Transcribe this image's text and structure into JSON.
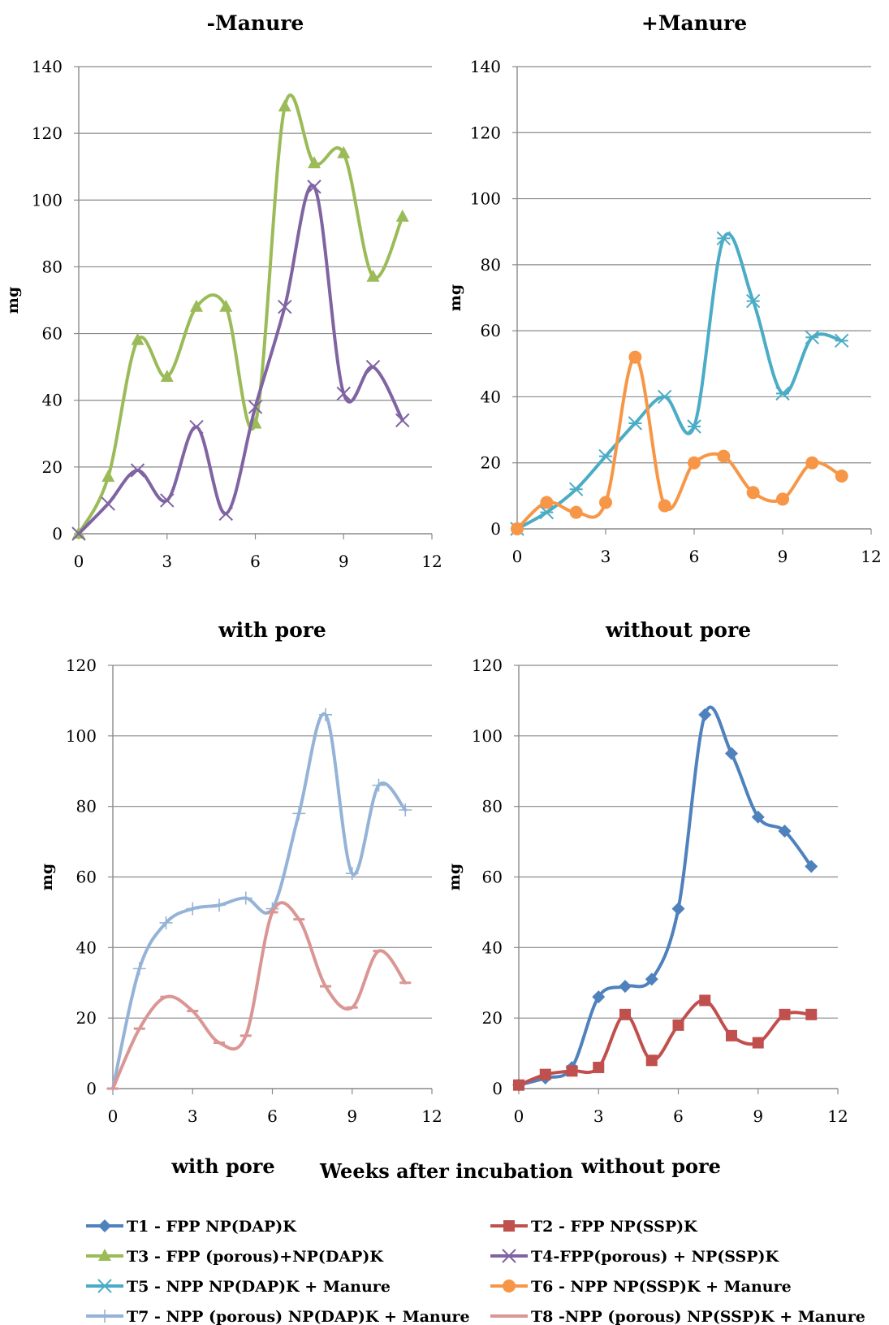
{
  "chart_data": [
    {
      "type": "line",
      "title": "-Manure",
      "xlabel": "",
      "ylabel": "mg",
      "xlim": [
        0,
        12
      ],
      "ylim": [
        0,
        140
      ],
      "xticks": [
        "0",
        "3",
        "6",
        "9",
        "12"
      ],
      "yticks": [
        "0",
        "20",
        "40",
        "60",
        "80",
        "100",
        "120",
        "140"
      ],
      "grid": "horizontal",
      "series": [
        {
          "name": "T3 - FPP (porous)+NP(DAP)K",
          "color": "#9bbb59",
          "marker": "triangle",
          "x": [
            0,
            1,
            2,
            3,
            4,
            5,
            6,
            7,
            8,
            9,
            10,
            11
          ],
          "y": [
            0,
            17,
            58,
            47,
            68,
            68,
            33,
            128,
            111,
            114,
            77,
            95
          ]
        },
        {
          "name": "T4-FPP(porous) + NP(SSP)K",
          "color": "#8064a2",
          "marker": "x",
          "x": [
            0,
            1,
            2,
            3,
            4,
            5,
            6,
            7,
            8,
            9,
            10,
            11
          ],
          "y": [
            0,
            9,
            19,
            10,
            32,
            6,
            38,
            68,
            104,
            42,
            50,
            34
          ]
        }
      ]
    },
    {
      "type": "line",
      "title": "+Manure",
      "xlabel": "",
      "ylabel": "mg",
      "xlim": [
        0,
        12
      ],
      "ylim": [
        0,
        140
      ],
      "xticks": [
        "0",
        "3",
        "6",
        "9",
        "12"
      ],
      "yticks": [
        "0",
        "20",
        "40",
        "60",
        "80",
        "100",
        "120",
        "140"
      ],
      "grid": "horizontal",
      "series": [
        {
          "name": "T5 - NPP NP(DAP)K  + Manure",
          "color": "#4bacc6",
          "marker": "asterisk",
          "x": [
            0,
            1,
            2,
            3,
            4,
            5,
            6,
            7,
            8,
            9,
            10,
            11
          ],
          "y": [
            0,
            5,
            12,
            22,
            32,
            40,
            31,
            88,
            69,
            41,
            58,
            57
          ]
        },
        {
          "name": "T6 - NPP NP(SSP)K  + Manure",
          "color": "#f79646",
          "marker": "circle",
          "x": [
            0,
            1,
            2,
            3,
            4,
            5,
            6,
            7,
            8,
            9,
            10,
            11
          ],
          "y": [
            0,
            8,
            5,
            8,
            52,
            7,
            20,
            22,
            11,
            9,
            20,
            16
          ]
        }
      ]
    },
    {
      "type": "line",
      "title": "with pore",
      "xlabel": "",
      "ylabel": "mg",
      "xlim": [
        0,
        12
      ],
      "ylim": [
        0,
        120
      ],
      "xticks": [
        "0",
        "3",
        "6",
        "9",
        "12"
      ],
      "yticks": [
        "0",
        "20",
        "40",
        "60",
        "80",
        "100",
        "120"
      ],
      "grid": "horizontal",
      "series": [
        {
          "name": "T7 - NPP (porous) NP(DAP)K  + Manure",
          "color": "#95b3d7",
          "marker": "plus",
          "x": [
            0,
            1,
            2,
            3,
            4,
            5,
            6,
            7,
            8,
            9,
            10,
            11
          ],
          "y": [
            0,
            34,
            47,
            51,
            52,
            54,
            51,
            78,
            106,
            61,
            86,
            79
          ]
        },
        {
          "name": "T8 -NPP  (porous) NP(SSP)K  + Manure",
          "color": "#d99694",
          "marker": "dash",
          "x": [
            0,
            1,
            2,
            3,
            4,
            5,
            6,
            7,
            8,
            9,
            10,
            11
          ],
          "y": [
            0,
            17,
            26,
            22,
            13,
            15,
            50,
            48,
            29,
            23,
            39,
            30
          ]
        }
      ]
    },
    {
      "type": "line",
      "title": "without pore",
      "xlabel": "",
      "ylabel": "mg",
      "xlim": [
        0,
        12
      ],
      "ylim": [
        0,
        120
      ],
      "xticks": [
        "0",
        "3",
        "6",
        "9",
        "12"
      ],
      "yticks": [
        "0",
        "20",
        "40",
        "60",
        "80",
        "100",
        "120"
      ],
      "grid": "horizontal",
      "series": [
        {
          "name": "T1 - FPP  NP(DAP)K",
          "color": "#4f81bd",
          "marker": "diamond",
          "x": [
            0,
            1,
            2,
            3,
            4,
            5,
            6,
            7,
            8,
            9,
            10,
            11
          ],
          "y": [
            1,
            3,
            6,
            26,
            29,
            31,
            51,
            106,
            95,
            77,
            73,
            63
          ]
        },
        {
          "name": "T2 - FPP NP(SSP)K",
          "color": "#c0504d",
          "marker": "square",
          "x": [
            0,
            1,
            2,
            3,
            4,
            5,
            6,
            7,
            8,
            9,
            10,
            11
          ],
          "y": [
            1,
            4,
            5,
            6,
            21,
            8,
            18,
            25,
            15,
            13,
            21,
            21
          ]
        }
      ]
    }
  ],
  "captions": {
    "with_pore": "with  pore",
    "weeks": "Weeks after incubation",
    "without_pore": "without pore"
  },
  "legend": [
    {
      "label": "T1 - FPP  NP(DAP)K",
      "color": "#4f81bd",
      "marker": "diamond"
    },
    {
      "label": "T2 - FPP NP(SSP)K",
      "color": "#c0504d",
      "marker": "square"
    },
    {
      "label": "T3 - FPP (porous)+NP(DAP)K",
      "color": "#9bbb59",
      "marker": "triangle"
    },
    {
      "label": "T4-FPP(porous) + NP(SSP)K",
      "color": "#8064a2",
      "marker": "x"
    },
    {
      "label": "T5 - NPP NP(DAP)K  + Manure",
      "color": "#4bacc6",
      "marker": "asterisk"
    },
    {
      "label": "T6 - NPP NP(SSP)K  + Manure",
      "color": "#f79646",
      "marker": "circle"
    },
    {
      "label": "T7 - NPP (porous) NP(DAP)K  + Manure",
      "color": "#95b3d7",
      "marker": "plus"
    },
    {
      "label": "T8 -NPP  (porous) NP(SSP)K  + Manure",
      "color": "#d99694",
      "marker": "dash"
    }
  ]
}
